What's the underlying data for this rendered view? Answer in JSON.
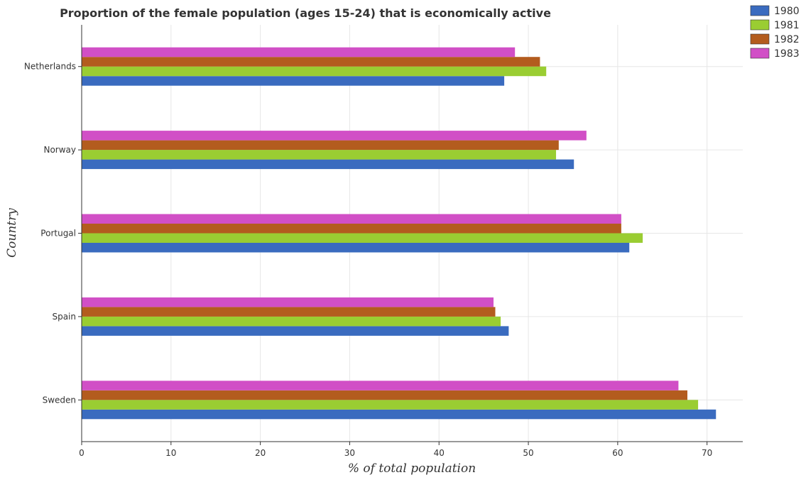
{
  "chart_data": {
    "type": "bar",
    "orientation": "horizontal",
    "title": "Proportion of the female population (ages 15-24) that is economically active",
    "xlabel": "% of total population",
    "ylabel": "Country",
    "categories": [
      "Netherlands",
      "Norway",
      "Portugal",
      "Spain",
      "Sweden"
    ],
    "series": [
      {
        "name": "1980",
        "color": "#3a6bbf",
        "values": [
          47.3,
          55.1,
          61.3,
          47.8,
          71.0
        ]
      },
      {
        "name": "1981",
        "color": "#9acd32",
        "values": [
          52.0,
          53.1,
          62.8,
          46.9,
          69.0
        ]
      },
      {
        "name": "1982",
        "color": "#b35c1e",
        "values": [
          51.3,
          53.4,
          60.4,
          46.3,
          67.8
        ]
      },
      {
        "name": "1983",
        "color": "#d14fc6",
        "values": [
          48.5,
          56.5,
          60.4,
          46.1,
          66.8
        ]
      }
    ],
    "xlim": [
      0,
      74
    ],
    "xticks": [
      0,
      10,
      20,
      30,
      40,
      50,
      60,
      70
    ],
    "grid": true,
    "legend_position": "top-right"
  }
}
